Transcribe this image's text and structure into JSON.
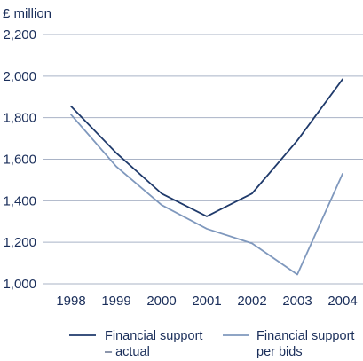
{
  "chart_data": {
    "type": "line",
    "unit_label": "£ million",
    "title": "",
    "xlabel": "",
    "ylabel": "",
    "x": [
      "1998",
      "1999",
      "2000",
      "2001",
      "2002",
      "2003",
      "2004"
    ],
    "ylim": [
      1000,
      2200
    ],
    "yticks": [
      1000,
      1200,
      1400,
      1600,
      1800,
      2000,
      2200
    ],
    "ytick_labels": [
      "1,000",
      "1,200",
      "1,400",
      "1,600",
      "1,800",
      "2,000",
      "2,200"
    ],
    "grid": true,
    "legend_position": "bottom",
    "series": [
      {
        "legend_lines": [
          "Financial support",
          "– actual"
        ],
        "color": "#1f3a6b",
        "values": [
          1855,
          1630,
          1435,
          1325,
          1435,
          1690,
          1985
        ]
      },
      {
        "legend_lines": [
          "Financial support",
          "per bids"
        ],
        "color": "#7f98bd",
        "values": [
          1815,
          1565,
          1380,
          1265,
          1195,
          1045,
          1530
        ]
      }
    ]
  }
}
